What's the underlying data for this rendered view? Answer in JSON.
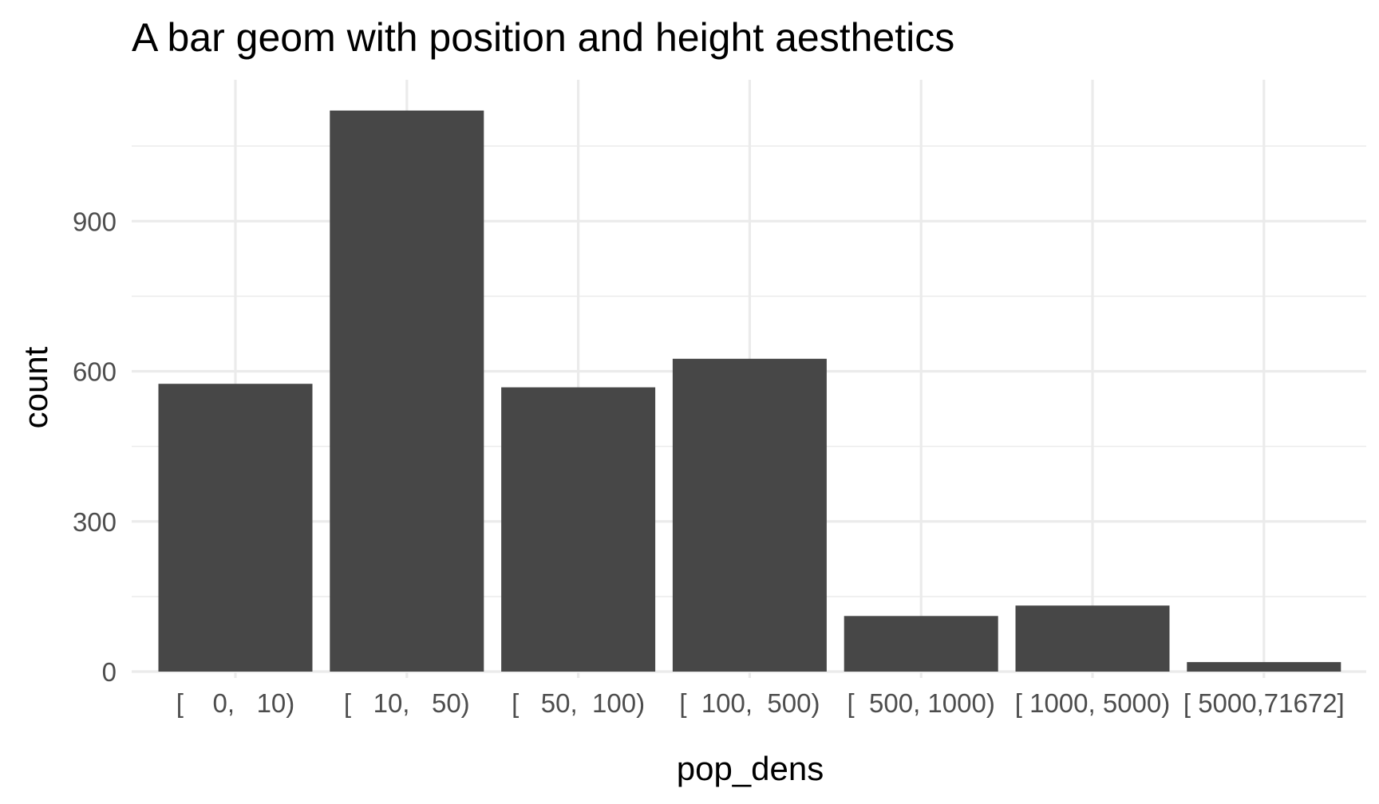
{
  "chart_data": {
    "type": "bar",
    "title": "A bar geom with position and height aesthetics",
    "xlabel": "pop_dens",
    "ylabel": "count",
    "categories": [
      "[    0,   10)",
      "[   10,   50)",
      "[   50,  100)",
      "[  100,  500)",
      "[  500, 1000)",
      "[ 1000, 5000)",
      "[ 5000,71672]"
    ],
    "values": [
      575,
      1121,
      568,
      625,
      111,
      132,
      19
    ],
    "ylim": [
      0,
      1175
    ],
    "yticks": [
      0,
      300,
      600,
      900
    ],
    "yticks_labels": [
      "0",
      "300",
      "600",
      "900"
    ],
    "grid": true,
    "legend": "none",
    "colors": {
      "bar": "#474747",
      "grid": "#ebebeb",
      "tick_text": "#4d4d4d",
      "text": "#000000",
      "background": "#ffffff"
    }
  }
}
